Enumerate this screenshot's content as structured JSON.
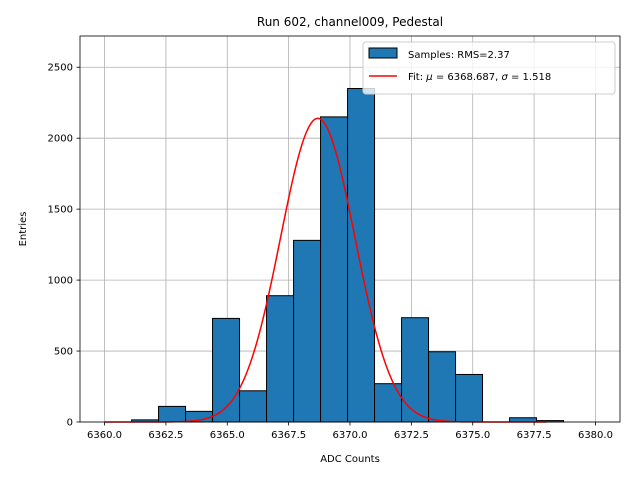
{
  "chart_data": {
    "type": "bar",
    "title": "Run 602, channel009, Pedestal",
    "xlabel": "ADC Counts",
    "ylabel": "Entries",
    "xlim": [
      6359.0,
      6381.0
    ],
    "ylim": [
      0,
      2720
    ],
    "xticks": [
      6360.0,
      6362.5,
      6365.0,
      6367.5,
      6370.0,
      6372.5,
      6375.0,
      6377.5,
      6380.0
    ],
    "xtick_labels": [
      "6360.0",
      "6362.5",
      "6365.0",
      "6367.5",
      "6370.0",
      "6372.5",
      "6375.0",
      "6377.5",
      "6380.0"
    ],
    "yticks": [
      0,
      500,
      1000,
      1500,
      2000,
      2500
    ],
    "ytick_labels": [
      "0",
      "500",
      "1000",
      "1500",
      "2000",
      "2500"
    ],
    "grid": true,
    "legend_position": "top-right",
    "histogram": {
      "name": "Samples: RMS=2.37",
      "color": "#1f77b4",
      "edge_color": "#000000",
      "bin_edges": [
        6360.0,
        6361.1,
        6362.2,
        6363.3,
        6364.4,
        6365.5,
        6366.6,
        6367.7,
        6368.8,
        6369.9,
        6371.0,
        6372.1,
        6373.2,
        6374.3,
        6375.4,
        6376.5,
        6377.6,
        6378.7,
        6379.8
      ],
      "counts": [
        0,
        15,
        110,
        75,
        730,
        220,
        890,
        1280,
        2150,
        2350,
        270,
        735,
        495,
        335,
        0,
        30,
        10,
        0
      ]
    },
    "fit": {
      "name_prefix": "Fit: ",
      "name_mu": "μ",
      "name_mu_value": " = 6368.687, ",
      "name_sigma": "σ",
      "name_sigma_value": " = 1.518",
      "color": "#ff0000",
      "mu": 6368.687,
      "sigma": 1.518,
      "amplitude": 2140,
      "x_range": [
        6360.0,
        6378.0
      ]
    }
  }
}
